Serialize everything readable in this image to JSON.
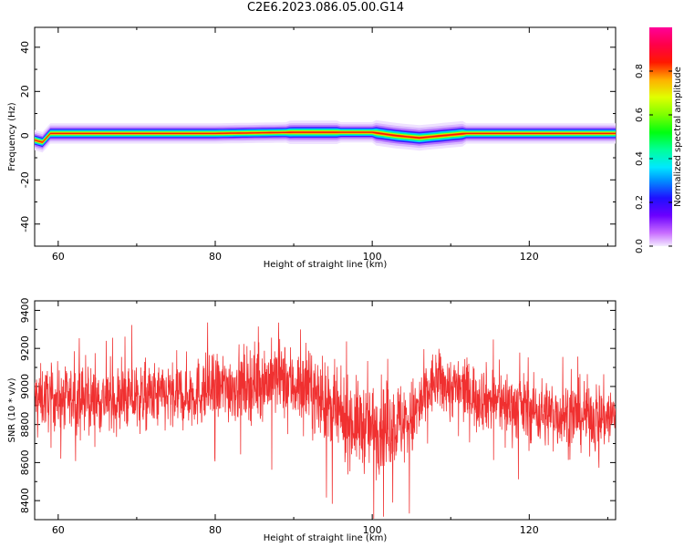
{
  "figure_title": "C2E6.2023.086.05.00.G14",
  "chart_data": [
    {
      "type": "heatmap",
      "xlabel": "Height of straight line (km)",
      "ylabel": "Frequency (Hz)",
      "xlim": [
        57,
        131
      ],
      "ylim": [
        -50,
        49
      ],
      "xticks": [
        60,
        80,
        100,
        120
      ],
      "yticks": [
        -40,
        -20,
        0,
        20,
        40
      ],
      "colorbar": {
        "label": "Normalized spectral amplitude",
        "range": [
          0.0,
          1.0
        ],
        "ticks": [
          0.0,
          0.2,
          0.4,
          0.6,
          0.8
        ],
        "colormap": "gist_ncar-like (purple-blue-cyan-green-yellow-red-magenta)"
      },
      "ridge": {
        "description": "Narrow spectral ridge centred near 0-1 Hz across all heights, slight dip near 100-110 km",
        "center_hz": [
          [
            57,
            -2
          ],
          [
            58,
            -3
          ],
          [
            59,
            1
          ],
          [
            60,
            1
          ],
          [
            61,
            1
          ],
          [
            70,
            1
          ],
          [
            80,
            1
          ],
          [
            90,
            1.5
          ],
          [
            95,
            1.5
          ],
          [
            100,
            1.5
          ],
          [
            103,
            0
          ],
          [
            106,
            -1
          ],
          [
            109,
            0
          ],
          [
            112,
            1
          ],
          [
            120,
            1
          ],
          [
            131,
            1
          ]
        ]
      }
    },
    {
      "type": "line",
      "color": "#f03030",
      "xlabel": "Height of straight line (km)",
      "ylabel": "SNR (10 * v/v)",
      "xlim": [
        57,
        131
      ],
      "ylim": [
        8300,
        9450
      ],
      "xticks": [
        60,
        80,
        100,
        120
      ],
      "yticks": [
        8400,
        8600,
        8800,
        9000,
        9200,
        9400
      ],
      "envelope": [
        {
          "x": 57,
          "mean": 8940,
          "spread": 90
        },
        {
          "x": 65,
          "mean": 8930,
          "spread": 95
        },
        {
          "x": 75,
          "mean": 8950,
          "spread": 100
        },
        {
          "x": 82,
          "mean": 9000,
          "spread": 105
        },
        {
          "x": 88,
          "mean": 9040,
          "spread": 110
        },
        {
          "x": 92,
          "mean": 8980,
          "spread": 110
        },
        {
          "x": 96,
          "mean": 8830,
          "spread": 120
        },
        {
          "x": 100,
          "mean": 8780,
          "spread": 130
        },
        {
          "x": 105,
          "mean": 8820,
          "spread": 120
        },
        {
          "x": 108,
          "mean": 9030,
          "spread": 90
        },
        {
          "x": 115,
          "mean": 8930,
          "spread": 95
        },
        {
          "x": 122,
          "mean": 8860,
          "spread": 100
        },
        {
          "x": 131,
          "mean": 8840,
          "spread": 100
        }
      ]
    }
  ]
}
